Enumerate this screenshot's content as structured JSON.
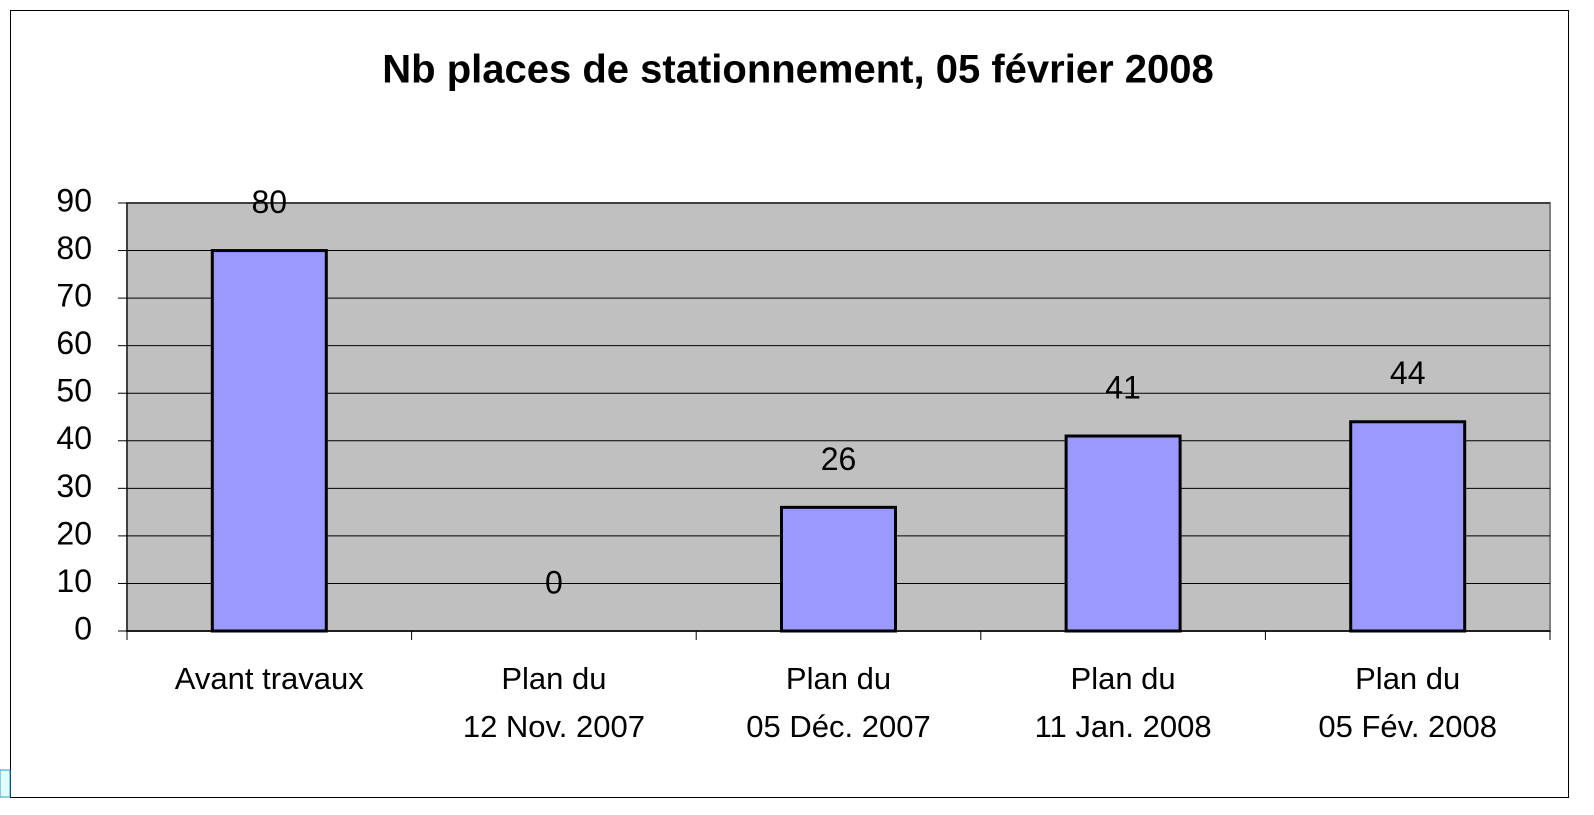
{
  "chart_data": {
    "type": "bar",
    "title": "Nb places de stationnement, 05 février 2008",
    "categories": [
      [
        "Avant travaux"
      ],
      [
        "Plan du",
        "12 Nov. 2007"
      ],
      [
        "Plan du",
        "05 Déc. 2007"
      ],
      [
        "Plan du",
        "11 Jan. 2008"
      ],
      [
        "Plan du",
        "05 Fév. 2008"
      ]
    ],
    "values": [
      80,
      0,
      26,
      41,
      44
    ],
    "color": "#9999ff",
    "ylim": [
      0,
      90
    ],
    "yticks": [
      0,
      10,
      20,
      30,
      40,
      50,
      60,
      70,
      80,
      90
    ],
    "grid": true
  }
}
